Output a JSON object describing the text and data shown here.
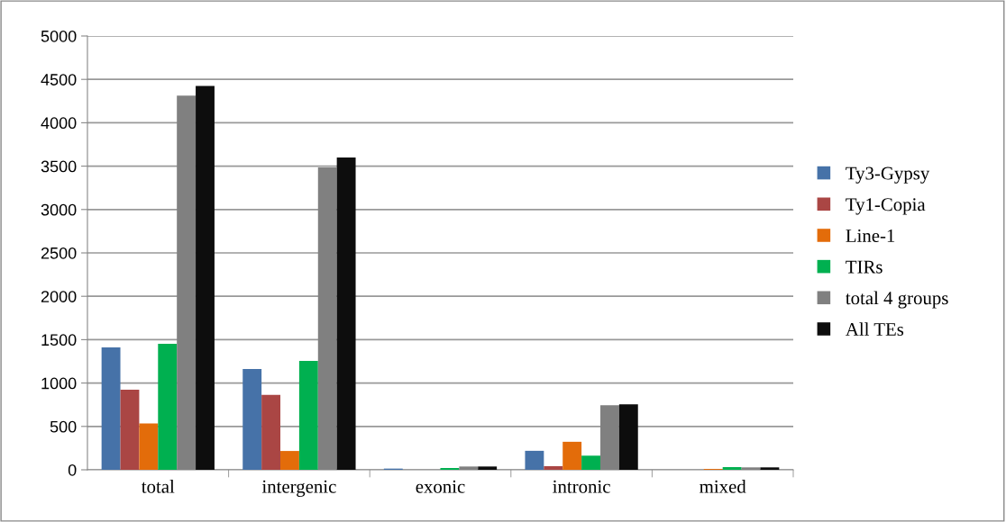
{
  "chart_data": {
    "type": "bar",
    "categories": [
      "total",
      "intergenic",
      "exonic",
      "intronic",
      "mixed"
    ],
    "series": [
      {
        "name": "Ty3-Gypsy",
        "color": "#4672a8",
        "values": [
          1411,
          1163,
          14,
          219,
          0
        ]
      },
      {
        "name": "Ty1-Copia",
        "color": "#aa4644",
        "values": [
          922,
          864,
          0,
          42,
          0
        ]
      },
      {
        "name": "Line-1",
        "color": "#e36c0a",
        "values": [
          533,
          217,
          0,
          323,
          10
        ]
      },
      {
        "name": "TIRs",
        "color": "#00b050",
        "values": [
          1452,
          1256,
          21,
          163,
          31
        ]
      },
      {
        "name": "total 4 groups",
        "color": "#808080",
        "values": [
          4312,
          3486,
          38,
          743,
          28
        ]
      },
      {
        "name": "All TEs",
        "color": "#0d0d0d",
        "values": [
          4425,
          3600,
          38,
          754,
          28
        ]
      }
    ],
    "ylim": [
      0,
      5000
    ],
    "yticks": [
      0,
      500,
      1000,
      1500,
      2000,
      2500,
      3000,
      3500,
      4000,
      4500,
      5000
    ],
    "grid": "y",
    "legend": "right"
  }
}
